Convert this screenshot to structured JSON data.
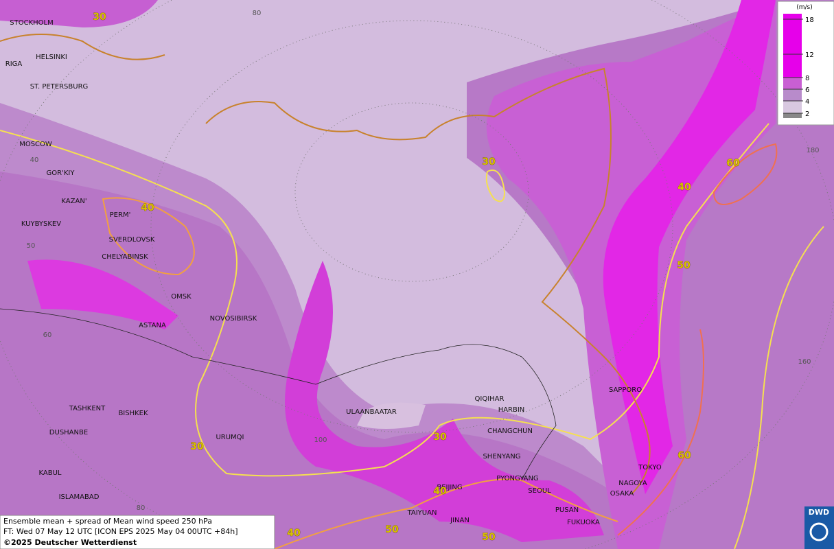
{
  "legend": {
    "unit": "(m/s)",
    "levels": [
      18,
      12,
      8,
      6,
      4,
      2
    ]
  },
  "cities": [
    "STOCKHOLM",
    "HELSINKI",
    "RIGA",
    "ST. PETERSBURG",
    "MOSCOW",
    "GOR'KIY",
    "KAZAN'",
    "PERM'",
    "KUYBYSKEV",
    "SVERDLOVSK",
    "CHELYABINSK",
    "OMSK",
    "NOVOSIBIRSK",
    "ASTANA",
    "TASHKENT",
    "BISHKEK",
    "DUSHANBE",
    "URUMQI",
    "KABUL",
    "ISLAMABAD",
    "ULAANBAATAR",
    "QIQIHAR",
    "HARBIN",
    "CHANGCHUN",
    "SHENYANG",
    "PYONGYANG",
    "BEIJING",
    "SEOUL",
    "TAIYUAN",
    "JINAN",
    "PUSAN",
    "FUKUOKA",
    "SAPPORO",
    "TOKYO",
    "NAGOYA",
    "OSAKA"
  ],
  "contour_labels": [
    30,
    40,
    30,
    40,
    60,
    50,
    30,
    30,
    40,
    60,
    40,
    50,
    50
  ],
  "grid_labels": [
    80,
    40,
    50,
    60,
    100,
    80,
    180,
    160
  ],
  "info": {
    "title": "Ensemble mean + spread of Mean wind speed 250 hPa",
    "forecast": "FT: Wed 07 May 12 UTC [ICON EPS 2025 May 04 00UTC +84h]",
    "copyright": "©2025 Deutscher Wetterdienst"
  },
  "logo": "DWD"
}
